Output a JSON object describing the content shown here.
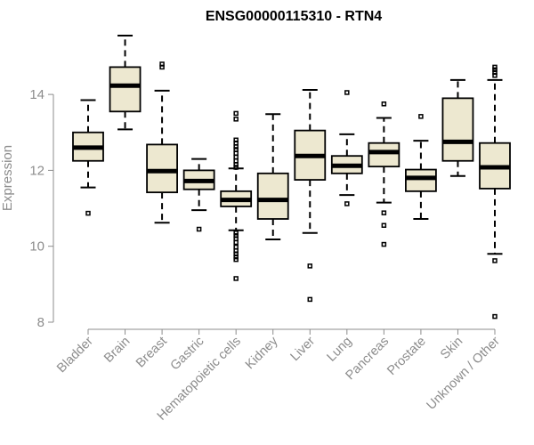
{
  "chart_data": {
    "type": "boxplot",
    "title": "ENSG00000115310 - RTN4",
    "xlabel": "",
    "ylabel": "Expression",
    "ylim": [
      8,
      15.7
    ],
    "yticks": [
      8,
      10,
      12,
      14
    ],
    "grid": false,
    "legend": "none",
    "box_fill": "#ede8d0",
    "box_stroke": "#000000",
    "axis_color": "#8c8c8c",
    "categories": [
      "Bladder",
      "Brain",
      "Breast",
      "Gastric",
      "Hematopoietic cells",
      "Kidney",
      "Liver",
      "Lung",
      "Pancreas",
      "Prostate",
      "Skin",
      "Unknown / Other"
    ],
    "boxes": [
      {
        "category": "Bladder",
        "whisker_low": 11.55,
        "q1": 12.25,
        "median": 12.6,
        "q3": 13.0,
        "whisker_high": 13.85,
        "outliers": [
          10.87
        ]
      },
      {
        "category": "Brain",
        "whisker_low": 13.08,
        "q1": 13.55,
        "median": 14.23,
        "q3": 14.72,
        "whisker_high": 15.55,
        "outliers": []
      },
      {
        "category": "Breast",
        "whisker_low": 10.62,
        "q1": 11.42,
        "median": 11.98,
        "q3": 12.68,
        "whisker_high": 14.1,
        "outliers": [
          14.72,
          14.8
        ]
      },
      {
        "category": "Gastric",
        "whisker_low": 10.95,
        "q1": 11.5,
        "median": 11.72,
        "q3": 12.0,
        "whisker_high": 12.3,
        "outliers": [
          10.45
        ]
      },
      {
        "category": "Hematopoietic cells",
        "whisker_low": 10.42,
        "q1": 11.05,
        "median": 11.22,
        "q3": 11.45,
        "whisker_high": 12.05,
        "outliers": [
          13.5,
          13.35,
          12.8,
          12.72,
          12.62,
          12.55,
          12.45,
          12.35,
          12.25,
          12.15,
          12.08,
          10.35,
          10.28,
          10.2,
          10.1,
          9.98,
          9.88,
          9.8,
          9.72,
          9.65,
          9.15
        ]
      },
      {
        "category": "Kidney",
        "whisker_low": 10.18,
        "q1": 10.72,
        "median": 11.22,
        "q3": 11.92,
        "whisker_high": 13.48,
        "outliers": []
      },
      {
        "category": "Liver",
        "whisker_low": 10.35,
        "q1": 11.75,
        "median": 12.38,
        "q3": 13.05,
        "whisker_high": 14.12,
        "outliers": [
          9.48,
          8.6
        ]
      },
      {
        "category": "Lung",
        "whisker_low": 11.35,
        "q1": 11.92,
        "median": 12.12,
        "q3": 12.38,
        "whisker_high": 12.95,
        "outliers": [
          14.05,
          11.12
        ]
      },
      {
        "category": "Pancreas",
        "whisker_low": 11.15,
        "q1": 12.1,
        "median": 12.48,
        "q3": 12.72,
        "whisker_high": 13.38,
        "outliers": [
          13.75,
          10.88,
          10.55,
          10.05
        ]
      },
      {
        "category": "Prostate",
        "whisker_low": 10.72,
        "q1": 11.45,
        "median": 11.8,
        "q3": 12.02,
        "whisker_high": 12.78,
        "outliers": [
          13.42
        ]
      },
      {
        "category": "Skin",
        "whisker_low": 11.85,
        "q1": 12.25,
        "median": 12.75,
        "q3": 13.9,
        "whisker_high": 14.38,
        "outliers": []
      },
      {
        "category": "Unknown / Other",
        "whisker_low": 9.8,
        "q1": 11.52,
        "median": 12.08,
        "q3": 12.72,
        "whisker_high": 14.38,
        "outliers": [
          14.72,
          14.65,
          14.58,
          14.5,
          9.62,
          8.15
        ]
      }
    ]
  }
}
